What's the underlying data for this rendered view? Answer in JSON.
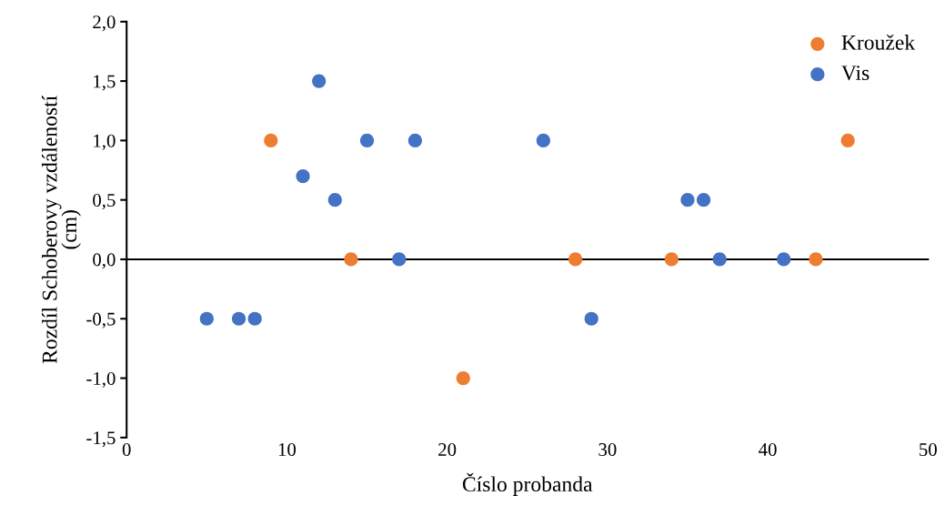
{
  "chart_data": {
    "type": "scatter",
    "xlabel": "Číslo probanda",
    "ylabel": "Rozdíl Schoberovy vzdáleností\n(cm)",
    "series": [
      {
        "name": "Kroužek",
        "color": "#ed7d31",
        "x": [
          9,
          14,
          21,
          28,
          34,
          43,
          45
        ],
        "values": [
          1.0,
          0,
          -1.0,
          0,
          0,
          0,
          1.0
        ]
      },
      {
        "name": "Vis",
        "color": "#4472c4",
        "x": [
          5,
          7,
          8,
          11,
          12,
          13,
          15,
          17,
          18,
          26,
          29,
          35,
          36,
          37,
          41
        ],
        "values": [
          -0.5,
          -0.5,
          -0.5,
          0.7,
          1.5,
          0.5,
          1.0,
          0,
          1.0,
          1.0,
          -0.5,
          0.5,
          0.5,
          0,
          0
        ]
      }
    ],
    "xlim": [
      0,
      50
    ],
    "xticks": [
      0,
      10,
      20,
      30,
      40,
      50
    ],
    "ylim": [
      -1.5,
      2.0
    ],
    "yticks": [
      {
        "value": -1.5,
        "label": "-1,5"
      },
      {
        "value": -1.0,
        "label": "-1,0"
      },
      {
        "value": -0.5,
        "label": "-0,5"
      },
      {
        "value": 0,
        "label": "0,0"
      },
      {
        "value": 0.5,
        "label": "0,5"
      },
      {
        "value": 1.0,
        "label": "1,0"
      },
      {
        "value": 1.5,
        "label": "1,5"
      },
      {
        "value": 2.0,
        "label": "2,0"
      }
    ],
    "legend": "top right",
    "marker": "circle"
  }
}
